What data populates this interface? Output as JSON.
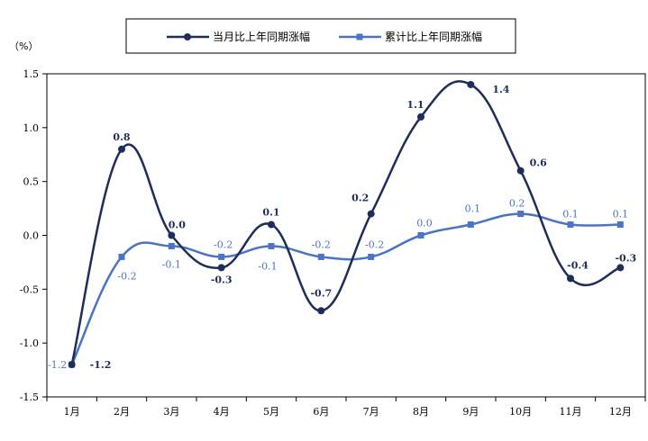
{
  "chart_data": {
    "type": "line",
    "unit_label": "（%）",
    "categories": [
      "1月",
      "2月",
      "3月",
      "4月",
      "5月",
      "6月",
      "7月",
      "8月",
      "9月",
      "10月",
      "11月",
      "12月"
    ],
    "ylim": [
      -1.5,
      1.5
    ],
    "yticks": [
      "1.5",
      "1.0",
      "0.5",
      "0.0",
      "-0.5",
      "-1.0",
      "-1.5"
    ],
    "ytick_values": [
      1.5,
      1.0,
      0.5,
      0.0,
      -0.5,
      -1.0,
      -1.5
    ],
    "grid": false,
    "legend_position": "top-center",
    "series": [
      {
        "name": "当月比上年同期涨幅",
        "color": "#1f2d5a",
        "marker": "circle",
        "values": [
          -1.2,
          0.8,
          0.0,
          -0.3,
          0.1,
          -0.7,
          0.2,
          1.1,
          1.4,
          0.6,
          -0.4,
          -0.3
        ],
        "labels": [
          "-1.2",
          "0.8",
          "0.0",
          "-0.3",
          "0.1",
          "-0.7",
          "0.2",
          "1.1",
          "1.4",
          "0.6",
          "-0.4",
          "-0.3"
        ]
      },
      {
        "name": "累计比上年同期涨幅",
        "color": "#4a74c4",
        "marker": "square",
        "values": [
          -1.2,
          -0.2,
          -0.1,
          -0.2,
          -0.1,
          -0.2,
          -0.2,
          0.0,
          0.1,
          0.2,
          0.1,
          0.1
        ],
        "labels": [
          "-1.2",
          "-0.2",
          "-0.1",
          "-0.2",
          "-0.1",
          "-0.2",
          "-0.2",
          "0.0",
          "0.1",
          "0.2",
          "0.1",
          "0.1"
        ]
      }
    ]
  }
}
